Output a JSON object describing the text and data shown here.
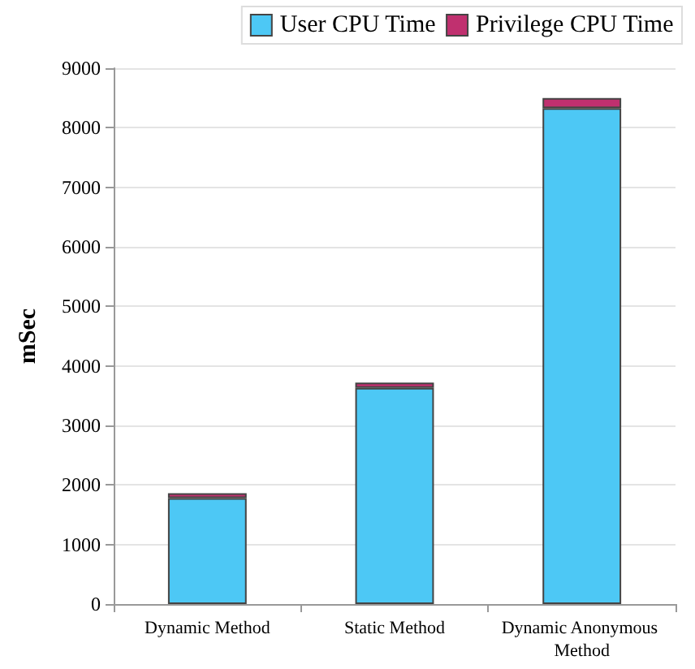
{
  "chart_data": {
    "type": "bar",
    "stacked": true,
    "ylabel": "mSec",
    "categories": [
      "Dynamic Method",
      "Static Method",
      "Dynamic Anonymous Method"
    ],
    "series": [
      {
        "name": "User CPU Time",
        "color": "#4dc8f5",
        "values": [
          1780,
          3630,
          8330
        ]
      },
      {
        "name": "Privilege CPU Time",
        "color": "#c0306f",
        "values": [
          80,
          90,
          170
        ]
      }
    ],
    "ylim": [
      0,
      9000
    ],
    "yticks": [
      0,
      1000,
      2000,
      3000,
      4000,
      5000,
      6000,
      7000,
      8000,
      9000
    ],
    "grid": "y",
    "legend": "top right"
  }
}
